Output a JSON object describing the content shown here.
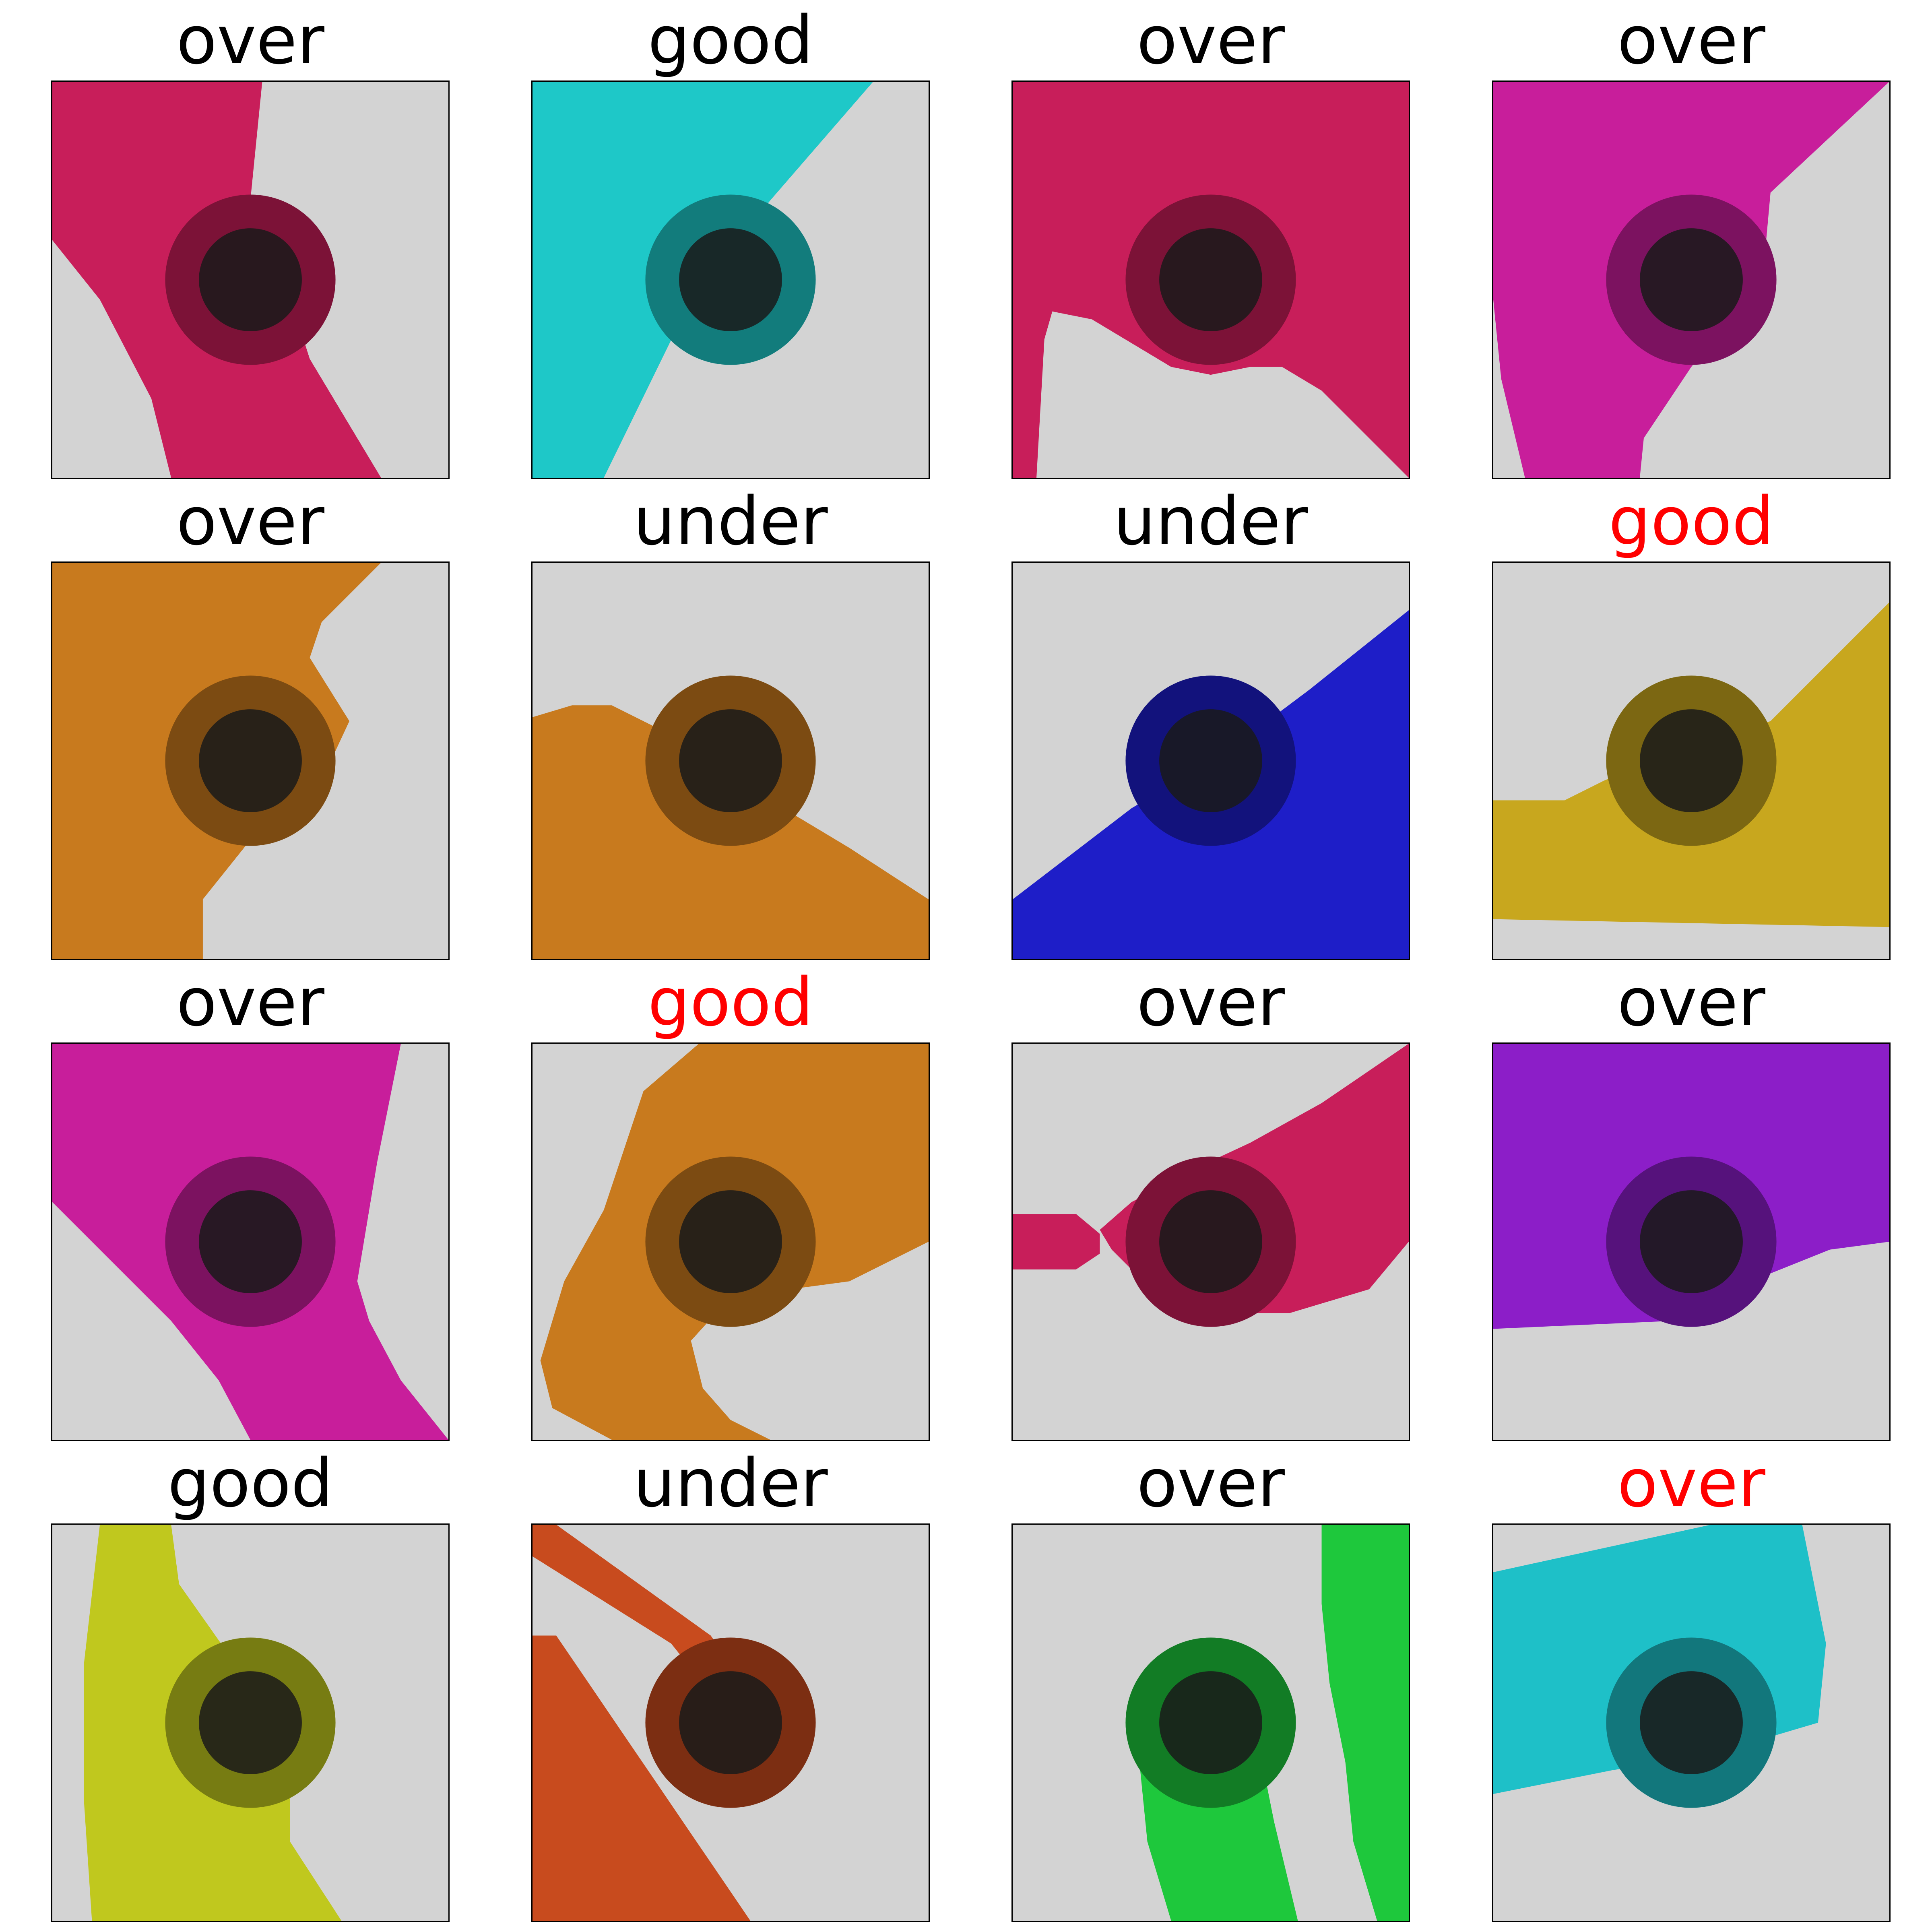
{
  "panels": [
    {
      "label": "over",
      "label_color": "#000000",
      "color": "#c81e5a"
    },
    {
      "label": "good",
      "label_color": "#000000",
      "color": "#1ec8c8"
    },
    {
      "label": "over",
      "label_color": "#000000",
      "color": "#c81e5a"
    },
    {
      "label": "over",
      "label_color": "#000000",
      "color": "#c81e9b"
    },
    {
      "label": "over",
      "label_color": "#000000",
      "color": "#c87a1e"
    },
    {
      "label": "under",
      "label_color": "#000000",
      "color": "#c87a1e"
    },
    {
      "label": "under",
      "label_color": "#000000",
      "color": "#1e1ec8"
    },
    {
      "label": "good",
      "label_color": "#ff0000",
      "color": "#c8a71e"
    },
    {
      "label": "over",
      "label_color": "#000000",
      "color": "#c81e9b"
    },
    {
      "label": "good",
      "label_color": "#ff0000",
      "color": "#c87a1e"
    },
    {
      "label": "over",
      "label_color": "#000000",
      "color": "#c81e5a"
    },
    {
      "label": "over",
      "label_color": "#000000",
      "color": "#8c1ec8"
    },
    {
      "label": "good",
      "label_color": "#000000",
      "color": "#c0c81e"
    },
    {
      "label": "under",
      "label_color": "#000000",
      "color": "#c84b1e"
    },
    {
      "label": "over",
      "label_color": "#000000",
      "color": "#1ec83c"
    },
    {
      "label": "over",
      "label_color": "#ff0000",
      "color": "#1ec0c8"
    }
  ]
}
